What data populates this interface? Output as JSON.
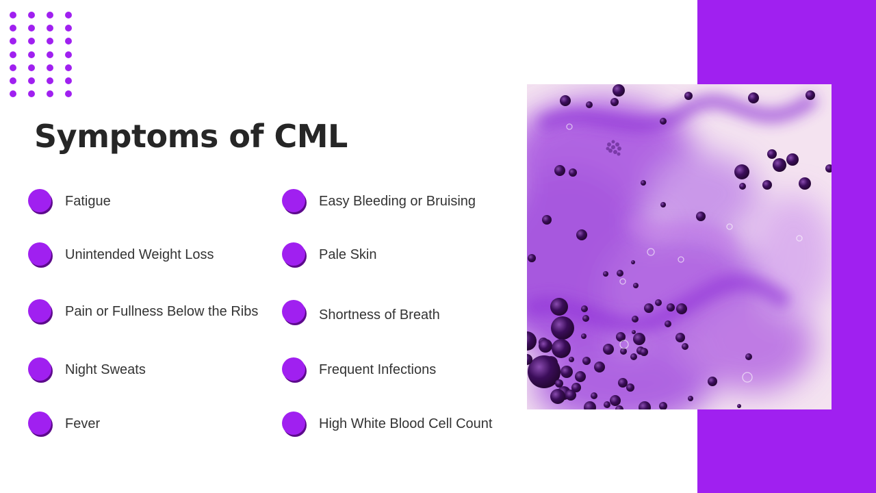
{
  "slide": {
    "title": "Symptoms of CML",
    "accent_color": "#a020f0",
    "left_column": [
      {
        "label": "Fatigue"
      },
      {
        "label": "Unintended Weight Loss"
      },
      {
        "label": "Pain or Fullness Below the Ribs"
      },
      {
        "label": "Night Sweats"
      },
      {
        "label": "Fever"
      }
    ],
    "right_column": [
      {
        "label": "Easy Bleeding or Bruising"
      },
      {
        "label": "Pale Skin"
      },
      {
        "label": "Shortness of Breath"
      },
      {
        "label": "Frequent Infections"
      },
      {
        "label": "High White Blood Cell Count"
      }
    ]
  },
  "image": {
    "icon": "purple-ink-bubbles-photo"
  }
}
